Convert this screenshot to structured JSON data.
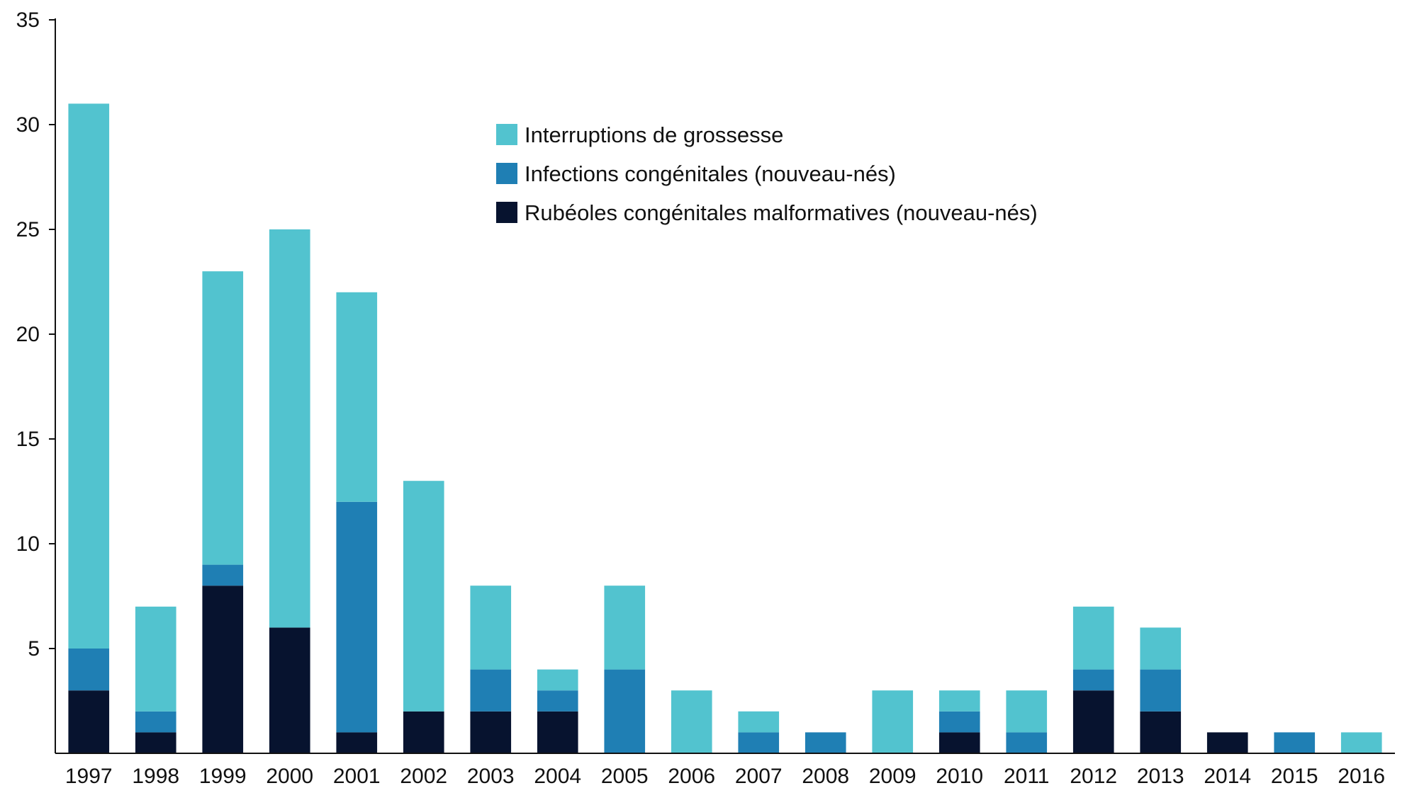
{
  "chart_data": {
    "type": "bar",
    "stacked": true,
    "title": "",
    "xlabel": "",
    "ylabel": "",
    "ylim": [
      0,
      35
    ],
    "yticks": [
      5,
      10,
      15,
      20,
      25,
      30,
      35
    ],
    "grid": false,
    "legend_position": "top-center",
    "categories": [
      "1997",
      "1998",
      "1999",
      "2000",
      "2001",
      "2002",
      "2003",
      "2004",
      "2005",
      "2006",
      "2007",
      "2008",
      "2009",
      "2010",
      "2011",
      "2012",
      "2013",
      "2014",
      "2015",
      "2016"
    ],
    "series": [
      {
        "name": "Rubéoles congénitales malformatives (nouveau-nés)",
        "color": "#07132f",
        "values": [
          3,
          1,
          8,
          6,
          1,
          2,
          2,
          2,
          0,
          0,
          0,
          0,
          0,
          1,
          0,
          3,
          2,
          1,
          0,
          0
        ]
      },
      {
        "name": "Infections congénitales (nouveau-nés)",
        "color": "#1f7fb4",
        "values": [
          2,
          1,
          1,
          0,
          11,
          0,
          2,
          1,
          4,
          0,
          1,
          1,
          0,
          1,
          1,
          1,
          2,
          0,
          1,
          0
        ]
      },
      {
        "name": "Interruptions de grossesse",
        "color": "#52c3cf",
        "values": [
          26,
          5,
          14,
          19,
          10,
          11,
          4,
          1,
          4,
          3,
          1,
          0,
          3,
          1,
          2,
          3,
          2,
          0,
          0,
          1
        ]
      }
    ],
    "legend_order": [
      2,
      1,
      0
    ]
  }
}
